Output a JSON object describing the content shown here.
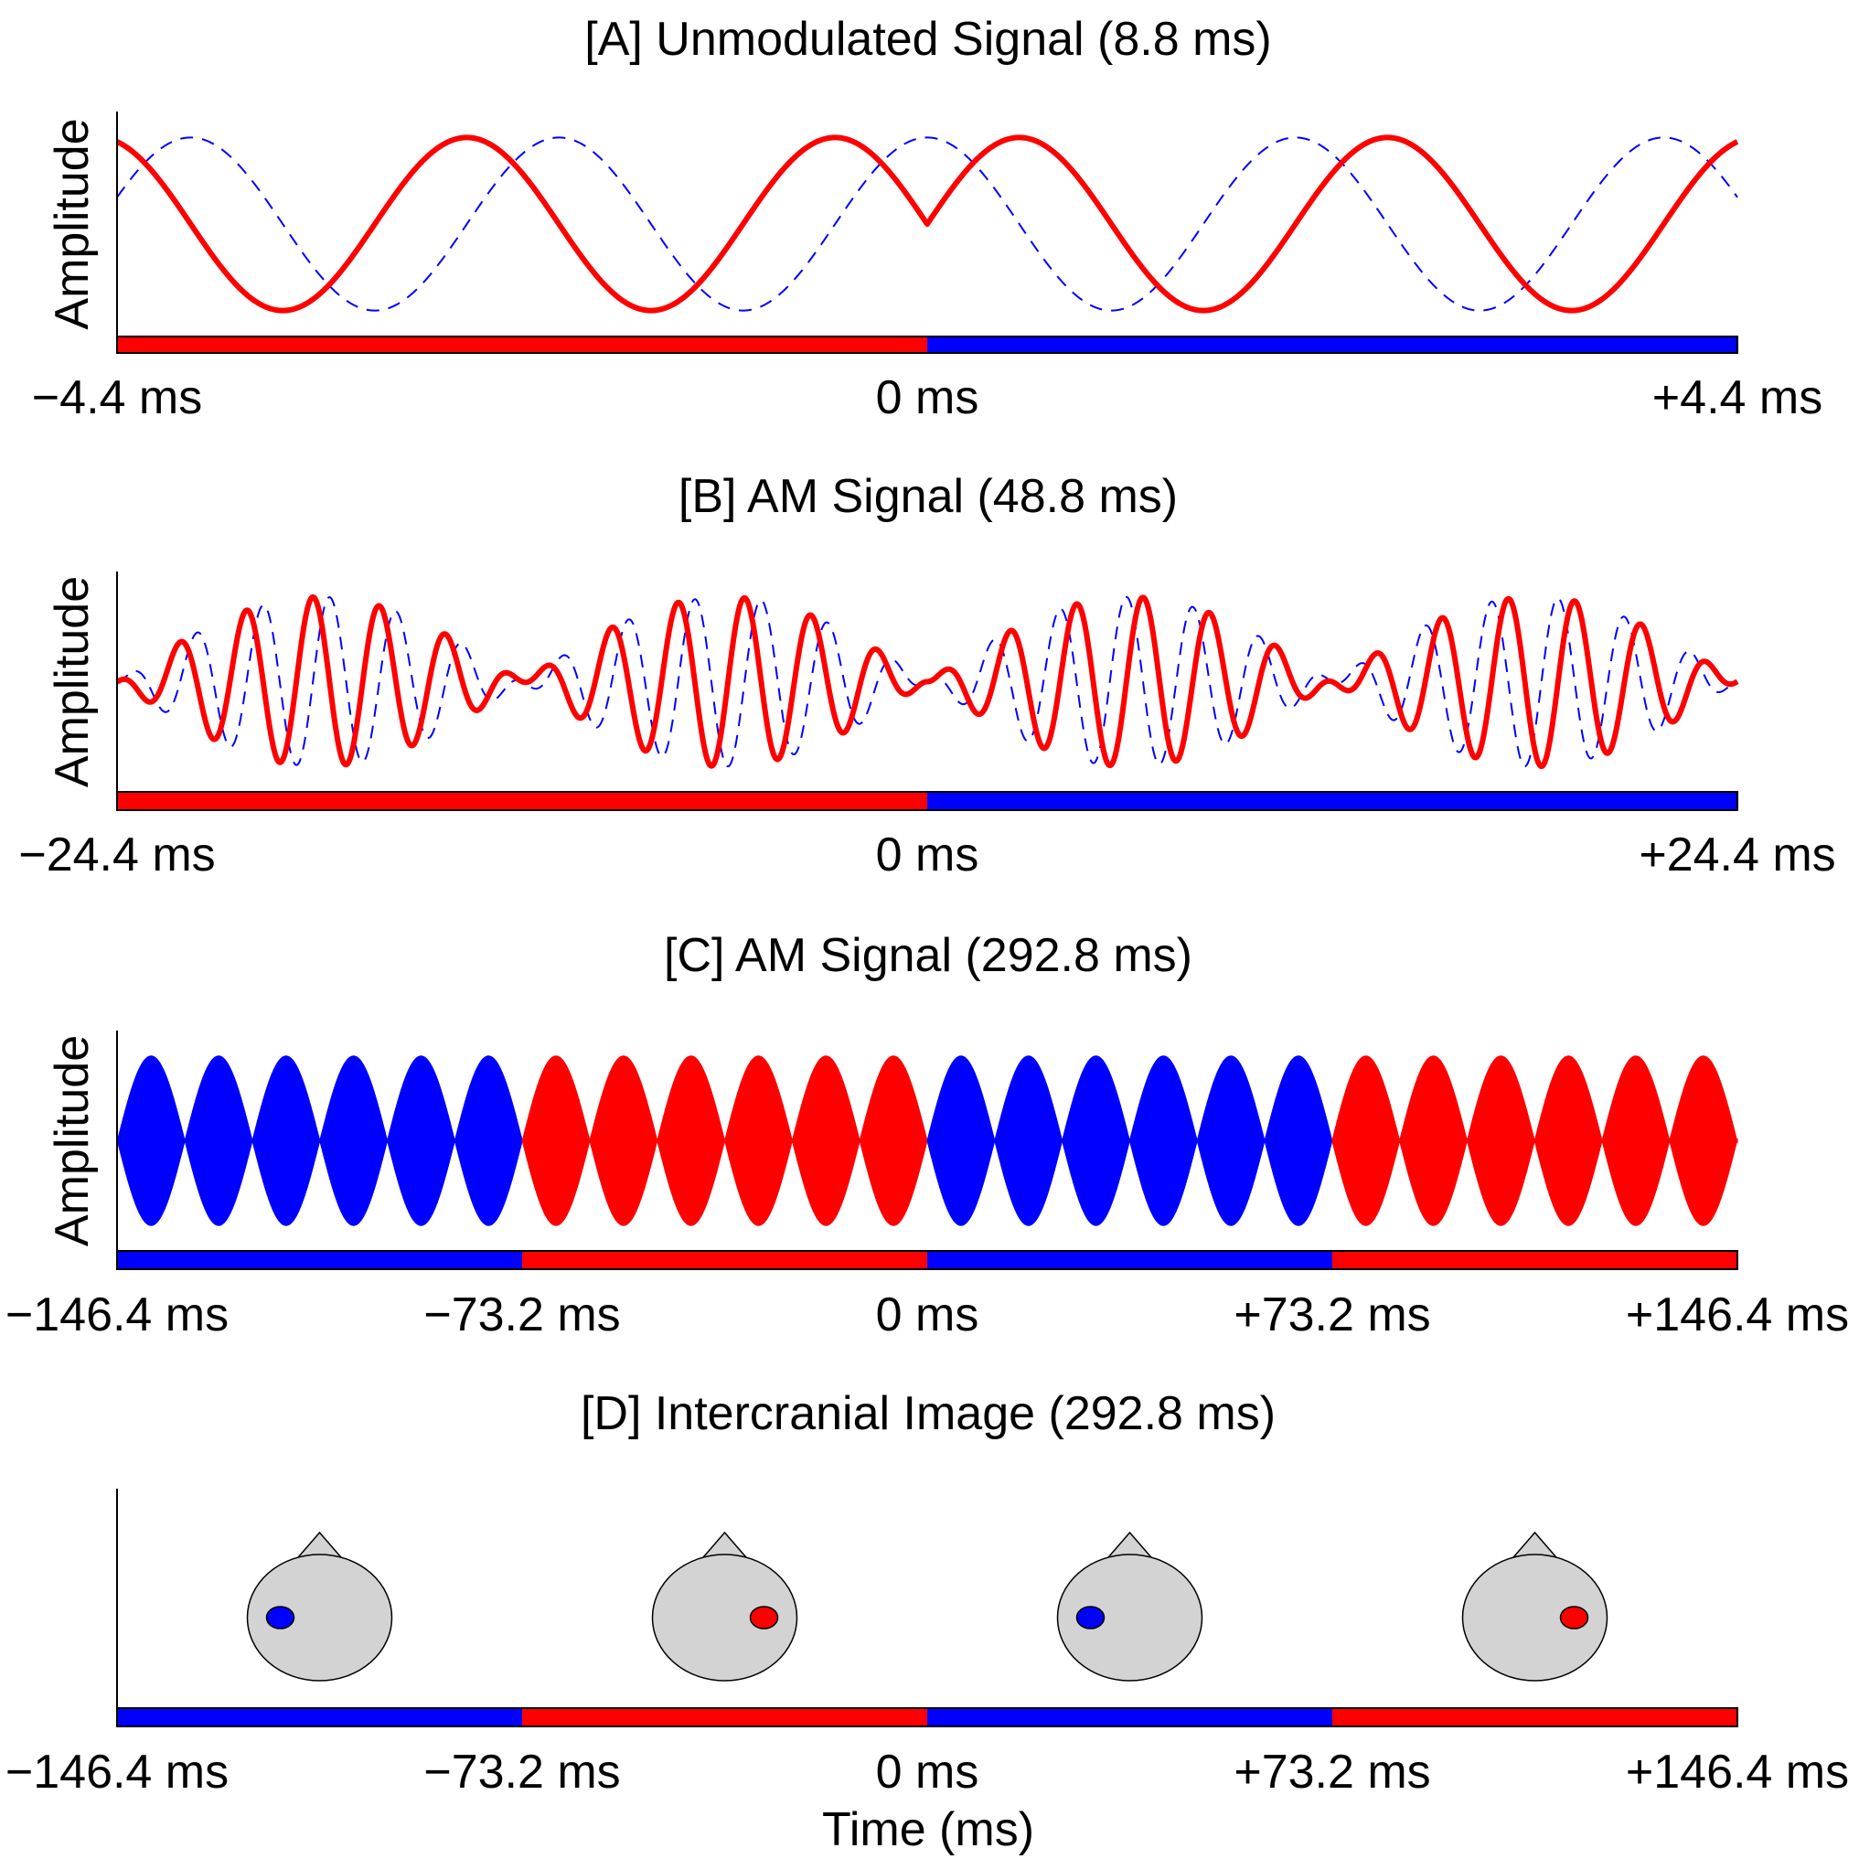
{
  "colors": {
    "red": "#ff0000",
    "blue": "#0000ff",
    "head_fill": "#d3d3d3",
    "axis": "#000000"
  },
  "figure": {
    "xlabel": "Time (ms)"
  },
  "chart_data": [
    {
      "id": "A",
      "type": "line",
      "title": "[A] Unmodulated Signal (8.8 ms)",
      "ylabel": "Amplitude",
      "xlim": [
        -4.4,
        4.4
      ],
      "ylim": [
        -1.3,
        1.3
      ],
      "carrier_hz": 500,
      "modulation": "none",
      "series": [
        {
          "color": "#ff0000",
          "style": "solid",
          "phase_pre": 1.571,
          "phase_post": -1.571
        },
        {
          "color": "#0000ff",
          "style": "dashed",
          "phase_pre": 0.0,
          "phase_post": 0.0
        }
      ],
      "tick_positions": [
        -4.4,
        0,
        4.4
      ],
      "tick_labels": [
        "−4.4 ms",
        "0 ms",
        "+4.4 ms"
      ],
      "bar_segments": [
        {
          "from": -4.4,
          "to": 0,
          "color": "#ff0000"
        },
        {
          "from": 0,
          "to": 4.4,
          "color": "#0000ff"
        }
      ]
    },
    {
      "id": "B",
      "type": "line",
      "title": "[B] AM Signal (48.8 ms)",
      "ylabel": "Amplitude",
      "xlim": [
        -24.4,
        24.4
      ],
      "ylim": [
        -1.3,
        1.3
      ],
      "carrier_hz": 500,
      "modulation_hz": 41,
      "series": [
        {
          "color": "#ff0000",
          "style": "solid",
          "phase_pre": 1.571,
          "phase_post": -1.571
        },
        {
          "color": "#0000ff",
          "style": "dashed",
          "phase_pre": 0.0,
          "phase_post": 0.0
        }
      ],
      "tick_positions": [
        -24.4,
        0,
        24.4
      ],
      "tick_labels": [
        "−24.4 ms",
        "0 ms",
        "+24.4 ms"
      ],
      "bar_segments": [
        {
          "from": -24.4,
          "to": 0,
          "color": "#ff0000"
        },
        {
          "from": 0,
          "to": 24.4,
          "color": "#0000ff"
        }
      ]
    },
    {
      "id": "C",
      "type": "area",
      "title": "[C] AM Signal (292.8 ms)",
      "ylabel": "Amplitude",
      "xlim": [
        -146.4,
        146.4
      ],
      "ylim": [
        -1.3,
        1.3
      ],
      "modulation_hz": 41,
      "envelope_segments": [
        {
          "from": -146.4,
          "to": -73.2,
          "color": "#0000ff"
        },
        {
          "from": -73.2,
          "to": 0,
          "color": "#ff0000"
        },
        {
          "from": 0,
          "to": 73.2,
          "color": "#0000ff"
        },
        {
          "from": 73.2,
          "to": 146.4,
          "color": "#ff0000"
        }
      ],
      "tick_positions": [
        -146.4,
        -73.2,
        0,
        73.2,
        146.4
      ],
      "tick_labels": [
        "−146.4 ms",
        "−73.2 ms",
        "0 ms",
        "+73.2 ms",
        "+146.4 ms"
      ],
      "bar_segments": [
        {
          "from": -146.4,
          "to": -73.2,
          "color": "#0000ff"
        },
        {
          "from": -73.2,
          "to": 0,
          "color": "#ff0000"
        },
        {
          "from": 0,
          "to": 73.2,
          "color": "#0000ff"
        },
        {
          "from": 73.2,
          "to": 146.4,
          "color": "#ff0000"
        }
      ]
    },
    {
      "id": "D",
      "type": "diagram",
      "title": "[D] Intercranial Image (292.8 ms)",
      "xlim": [
        -146.4,
        146.4
      ],
      "heads": [
        {
          "center_ms": -109.8,
          "side": "left",
          "color": "#0000ff"
        },
        {
          "center_ms": -36.6,
          "side": "right",
          "color": "#ff0000"
        },
        {
          "center_ms": 36.6,
          "side": "left",
          "color": "#0000ff"
        },
        {
          "center_ms": 109.8,
          "side": "right",
          "color": "#ff0000"
        }
      ],
      "tick_positions": [
        -146.4,
        -73.2,
        0,
        73.2,
        146.4
      ],
      "tick_labels": [
        "−146.4 ms",
        "−73.2 ms",
        "0 ms",
        "+73.2 ms",
        "+146.4 ms"
      ],
      "bar_segments": [
        {
          "from": -146.4,
          "to": -73.2,
          "color": "#0000ff"
        },
        {
          "from": -73.2,
          "to": 0,
          "color": "#ff0000"
        },
        {
          "from": 0,
          "to": 73.2,
          "color": "#0000ff"
        },
        {
          "from": 73.2,
          "to": 146.4,
          "color": "#ff0000"
        }
      ]
    }
  ]
}
